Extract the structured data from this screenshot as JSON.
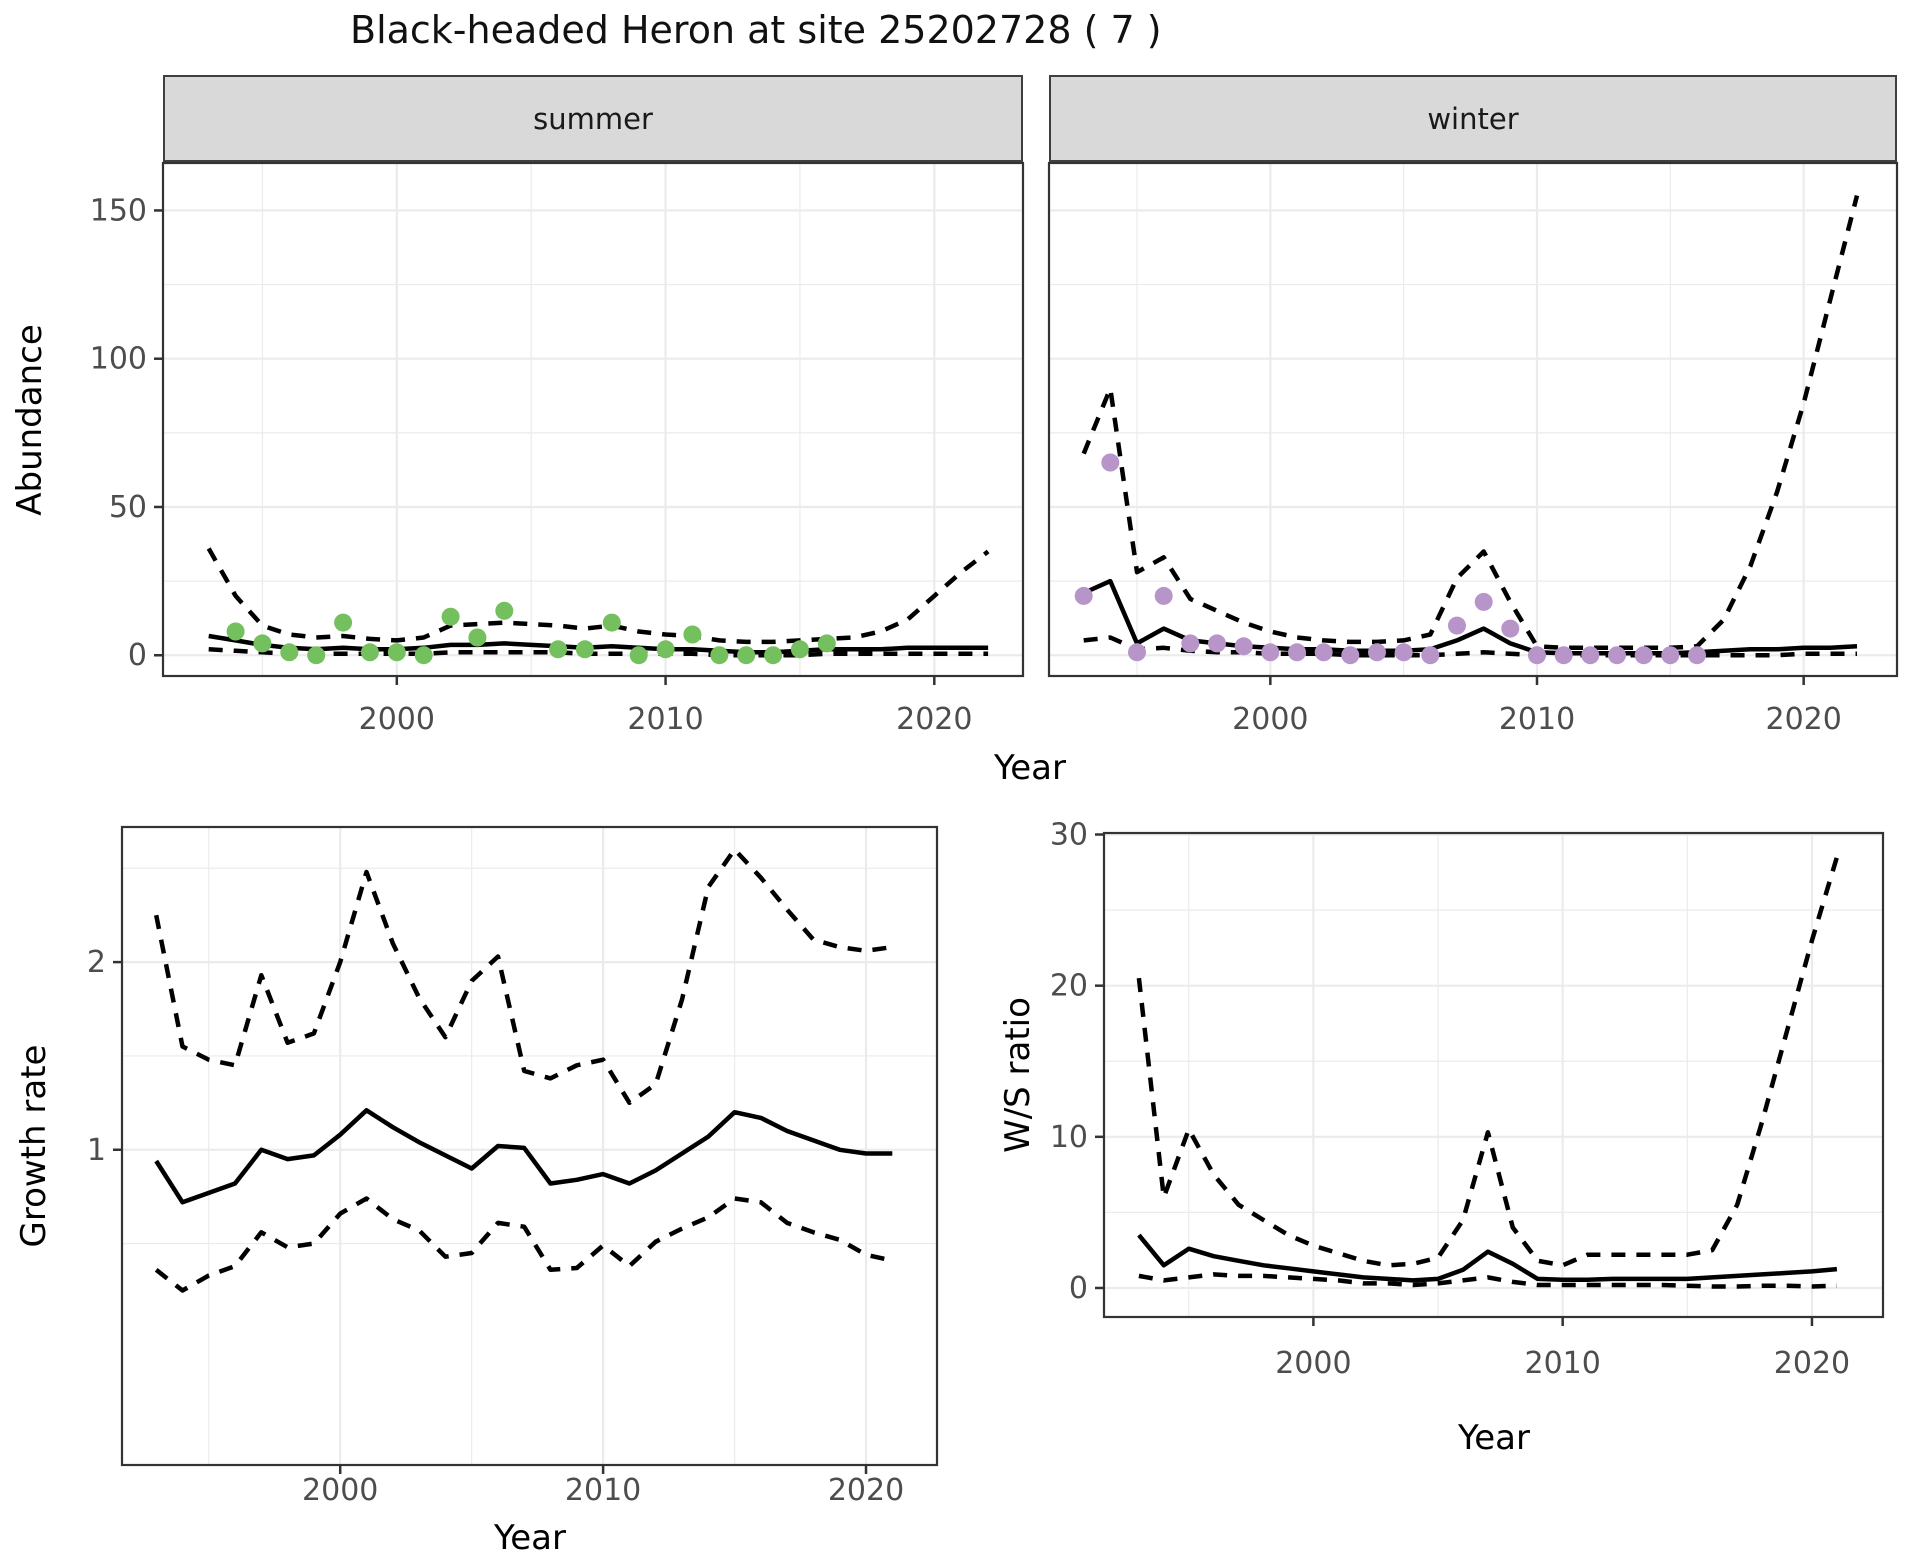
{
  "title": "Black-headed Heron at site 25202728 ( 7 )",
  "facets": {
    "summer_label": "summer",
    "winter_label": "winter"
  },
  "axes": {
    "abundance": {
      "title": "Abundance",
      "ticks": [
        0,
        50,
        100,
        150
      ]
    },
    "growth": {
      "title": "Growth rate",
      "ticks": [
        1,
        2
      ]
    },
    "ws": {
      "title": "W/S ratio",
      "ticks": [
        0,
        10,
        20,
        30
      ]
    },
    "year_top": {
      "title": "Year",
      "ticks": [
        2000,
        2010,
        2020
      ]
    },
    "year_growth": {
      "title": "Year",
      "ticks": [
        2000,
        2010,
        2020
      ]
    },
    "year_ws": {
      "title": "Year",
      "ticks": [
        2000,
        2010,
        2020
      ]
    }
  },
  "colors": {
    "summer_point": "#74C05E",
    "winter_point": "#B795C8",
    "line": "#000000",
    "grid": "#EBEBEB",
    "strip_bg": "#D9D9D9",
    "axis_text": "#4D4D4D",
    "panel_border": "#333333"
  },
  "chart_data": [
    {
      "id": "abundance-summer",
      "type": "line",
      "facet": "summer",
      "title": "summer",
      "xlabel": "Year",
      "ylabel": "Abundance",
      "xlim": [
        1991.3,
        2023.3
      ],
      "ylim": [
        -7,
        166
      ],
      "x_ticks": [
        2000,
        2010,
        2020
      ],
      "y_ticks": [
        0,
        50,
        100,
        150
      ],
      "x_minor": [
        1995,
        2005,
        2015
      ],
      "y_minor": [
        25,
        75,
        125
      ],
      "x": [
        1993,
        1994,
        1995,
        1996,
        1997,
        1998,
        1999,
        2000,
        2001,
        2002,
        2003,
        2004,
        2005,
        2006,
        2007,
        2008,
        2009,
        2010,
        2011,
        2012,
        2013,
        2014,
        2015,
        2016,
        2017,
        2018,
        2019,
        2020,
        2021,
        2022
      ],
      "series": [
        {
          "name": "upper-ci",
          "style": "dashed",
          "values": [
            36,
            20,
            10,
            7,
            6,
            6.5,
            5.5,
            5,
            6,
            10,
            10.5,
            11,
            10.5,
            10,
            9,
            10,
            8,
            7,
            6.5,
            5,
            4.5,
            4.5,
            5,
            5.5,
            6,
            8,
            12,
            20,
            28,
            35
          ]
        },
        {
          "name": "median-fit",
          "style": "solid",
          "values": [
            6.5,
            5,
            3.5,
            2.5,
            2,
            2.5,
            2,
            2,
            2.5,
            3.5,
            3.5,
            4,
            3.5,
            3,
            2.5,
            3,
            2.5,
            2,
            2,
            1.5,
            1,
            1,
            1.5,
            2,
            2,
            2,
            2.5,
            2.5,
            2.5,
            2.5
          ]
        },
        {
          "name": "lower-ci",
          "style": "dashed",
          "values": [
            2,
            1.5,
            1,
            0.5,
            0.5,
            0.5,
            0.5,
            0.5,
            0.5,
            1,
            1,
            1,
            1,
            1,
            0.5,
            0.5,
            0.5,
            0.5,
            0.5,
            0,
            0,
            0,
            0,
            0.5,
            0.5,
            0.5,
            0.5,
            0.5,
            0.5,
            0.5
          ]
        }
      ],
      "points": {
        "name": "observed-count",
        "color": "#74C05E",
        "x": [
          1994,
          1995,
          1996,
          1997,
          1998,
          1999,
          2000,
          2001,
          2002,
          2003,
          2004,
          2006,
          2007,
          2008,
          2009,
          2010,
          2011,
          2012,
          2013,
          2014,
          2015,
          2016
        ],
        "y": [
          8,
          4,
          1,
          0,
          11,
          1,
          1,
          0,
          13,
          6,
          15,
          2,
          2,
          11,
          0,
          2,
          7,
          0,
          0,
          0,
          2,
          4
        ]
      }
    },
    {
      "id": "abundance-winter",
      "type": "line",
      "facet": "winter",
      "title": "winter",
      "xlabel": "Year",
      "ylabel": "Abundance",
      "xlim": [
        1991.7,
        2023.5
      ],
      "ylim": [
        -7,
        166
      ],
      "x_ticks": [
        2000,
        2010,
        2020
      ],
      "y_ticks": [
        0,
        50,
        100,
        150
      ],
      "x_minor": [
        1995,
        2005,
        2015
      ],
      "y_minor": [
        25,
        75,
        125
      ],
      "x": [
        1993,
        1994,
        1995,
        1996,
        1997,
        1998,
        1999,
        2000,
        2001,
        2002,
        2003,
        2004,
        2005,
        2006,
        2007,
        2008,
        2009,
        2010,
        2011,
        2012,
        2013,
        2014,
        2015,
        2016,
        2017,
        2018,
        2019,
        2020,
        2021,
        2022
      ],
      "series": [
        {
          "name": "upper-ci",
          "style": "dashed",
          "values": [
            68,
            90,
            28,
            33,
            19,
            15,
            11,
            8,
            6,
            5,
            4.5,
            4.5,
            5,
            7,
            26,
            35,
            18,
            3,
            2.5,
            2.5,
            2.5,
            2.5,
            2.5,
            3,
            12,
            30,
            55,
            85,
            120,
            155
          ]
        },
        {
          "name": "median-fit",
          "style": "solid",
          "values": [
            21,
            25,
            4,
            9,
            5,
            4,
            3,
            2.5,
            2,
            2,
            1.5,
            1.5,
            1.5,
            2,
            5,
            9,
            4,
            1,
            0.7,
            0.7,
            0.7,
            0.7,
            0.7,
            1,
            1.5,
            2,
            2,
            2.5,
            2.5,
            3
          ]
        },
        {
          "name": "lower-ci",
          "style": "dashed",
          "values": [
            5,
            6,
            2,
            2.5,
            1.5,
            1,
            1,
            0.5,
            0.5,
            0.5,
            0,
            0,
            0,
            0,
            0.5,
            1,
            0.5,
            0,
            0,
            0,
            0,
            0,
            0,
            0,
            0,
            0,
            0,
            0.5,
            0.5,
            0.5
          ]
        }
      ],
      "points": {
        "name": "observed-count",
        "color": "#B795C8",
        "x": [
          1993,
          1994,
          1995,
          1996,
          1997,
          1998,
          1999,
          2000,
          2001,
          2002,
          2003,
          2004,
          2005,
          2006,
          2007,
          2008,
          2009,
          2010,
          2011,
          2012,
          2013,
          2014,
          2015,
          2016
        ],
        "y": [
          20,
          65,
          1,
          20,
          4,
          4,
          3,
          1,
          1,
          1,
          0,
          1,
          1,
          0,
          10,
          18,
          9,
          0,
          0,
          0,
          0,
          0,
          0,
          0
        ]
      }
    },
    {
      "id": "growth-rate",
      "type": "line",
      "facet": "none",
      "title": "Growth rate",
      "xlabel": "Year",
      "ylabel": "Growth rate",
      "xlim": [
        1991.7,
        2022.7
      ],
      "ylim": [
        -0.68,
        2.72
      ],
      "x_ticks": [
        2000,
        2010,
        2020
      ],
      "y_ticks": [
        1,
        2
      ],
      "x_minor": [
        1995,
        2005,
        2015
      ],
      "y_minor": [
        0.5,
        1.5,
        2.5
      ],
      "x": [
        1993,
        1994,
        1995,
        1996,
        1997,
        1998,
        1999,
        2000,
        2001,
        2002,
        2003,
        2004,
        2005,
        2006,
        2007,
        2008,
        2009,
        2010,
        2011,
        2012,
        2013,
        2014,
        2015,
        2016,
        2017,
        2018,
        2019,
        2020,
        2021
      ],
      "series": [
        {
          "name": "upper-ci",
          "style": "dashed",
          "values": [
            2.25,
            1.55,
            1.48,
            1.45,
            1.93,
            1.57,
            1.62,
            2.0,
            2.48,
            2.1,
            1.81,
            1.6,
            1.9,
            2.03,
            1.42,
            1.38,
            1.45,
            1.48,
            1.25,
            1.35,
            1.8,
            2.4,
            2.6,
            2.45,
            2.28,
            2.12,
            2.08,
            2.06,
            2.08
          ]
        },
        {
          "name": "median-fit",
          "style": "solid",
          "values": [
            0.94,
            0.72,
            0.77,
            0.82,
            1.0,
            0.95,
            0.97,
            1.08,
            1.21,
            1.12,
            1.04,
            0.97,
            0.9,
            1.02,
            1.01,
            0.82,
            0.84,
            0.87,
            0.82,
            0.89,
            0.98,
            1.07,
            1.2,
            1.17,
            1.1,
            1.05,
            1.0,
            0.98,
            0.98
          ]
        },
        {
          "name": "lower-ci",
          "style": "dashed",
          "values": [
            0.36,
            0.25,
            0.33,
            0.38,
            0.56,
            0.48,
            0.5,
            0.66,
            0.74,
            0.63,
            0.57,
            0.43,
            0.45,
            0.61,
            0.59,
            0.36,
            0.37,
            0.49,
            0.38,
            0.51,
            0.58,
            0.64,
            0.74,
            0.72,
            0.61,
            0.56,
            0.52,
            0.44,
            0.41
          ]
        }
      ],
      "points": null
    },
    {
      "id": "ws-ratio",
      "type": "line",
      "facet": "none",
      "title": "W/S ratio",
      "xlabel": "Year",
      "ylabel": "W/S ratio",
      "xlim": [
        1991.6,
        2022.85
      ],
      "ylim": [
        -1.92,
        30.1
      ],
      "x_ticks": [
        2000,
        2010,
        2020
      ],
      "y_ticks": [
        0,
        10,
        20,
        30
      ],
      "x_minor": [
        1995,
        2005,
        2015
      ],
      "y_minor": [
        5,
        15,
        25
      ],
      "x": [
        1993,
        1994,
        1995,
        1996,
        1997,
        1998,
        1999,
        2000,
        2001,
        2002,
        2003,
        2004,
        2005,
        2006,
        2007,
        2008,
        2009,
        2010,
        2011,
        2012,
        2013,
        2014,
        2015,
        2016,
        2017,
        2018,
        2019,
        2020,
        2021
      ],
      "series": [
        {
          "name": "upper-ci",
          "style": "dashed",
          "values": [
            20.5,
            6.0,
            10.5,
            7.5,
            5.5,
            4.5,
            3.5,
            2.8,
            2.3,
            1.8,
            1.5,
            1.6,
            2.0,
            4.5,
            10.3,
            4.0,
            1.8,
            1.5,
            2.2,
            2.2,
            2.2,
            2.2,
            2.2,
            2.5,
            5.5,
            11,
            17,
            23,
            28.5
          ]
        },
        {
          "name": "median-fit",
          "style": "solid",
          "values": [
            3.5,
            1.5,
            2.6,
            2.1,
            1.8,
            1.5,
            1.3,
            1.1,
            0.9,
            0.7,
            0.6,
            0.5,
            0.6,
            1.2,
            2.4,
            1.6,
            0.6,
            0.55,
            0.55,
            0.6,
            0.6,
            0.6,
            0.6,
            0.7,
            0.8,
            0.9,
            1.0,
            1.1,
            1.25
          ]
        },
        {
          "name": "lower-ci",
          "style": "dashed",
          "values": [
            0.8,
            0.5,
            0.7,
            0.9,
            0.8,
            0.8,
            0.7,
            0.6,
            0.5,
            0.3,
            0.3,
            0.2,
            0.3,
            0.5,
            0.7,
            0.4,
            0.2,
            0.2,
            0.2,
            0.2,
            0.2,
            0.2,
            0.15,
            0.1,
            0.1,
            0.15,
            0.15,
            0.1,
            0.15
          ]
        }
      ],
      "points": null
    }
  ]
}
